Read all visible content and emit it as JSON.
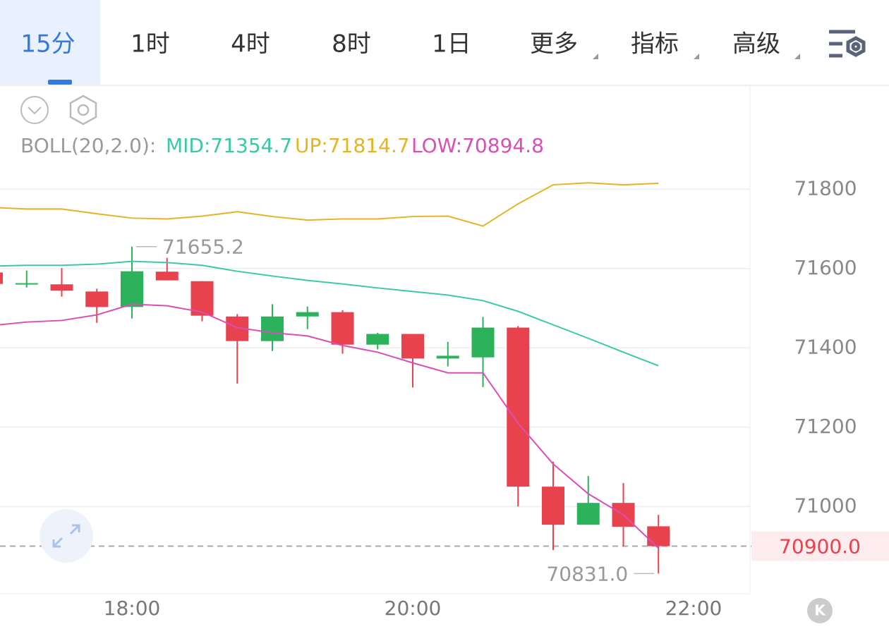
{
  "tabs": [
    "15分",
    "1时",
    "4时",
    "8时",
    "1日",
    "更多",
    "指标",
    "高级"
  ],
  "chart_data": {
    "type": "candlestick",
    "indicator": "BOLL(20,2.0):",
    "categories": [
      null,
      null,
      null,
      null,
      "18:00",
      null,
      null,
      null,
      null,
      null,
      null,
      null,
      "20:00",
      null,
      null,
      null,
      null,
      null,
      null,
      null,
      "22:00"
    ],
    "open": [
      71590,
      71562,
      71560,
      71542,
      71503,
      71592,
      71568,
      71479,
      71417,
      71479,
      71490,
      71408,
      71435,
      71373,
      71376,
      71451,
      71050,
      70954,
      71009,
      70950,
      null
    ],
    "high": [
      71597,
      71595,
      71601,
      71549,
      71655.2,
      71627,
      71568,
      71485,
      71510,
      71504,
      71495,
      71438,
      71435,
      71415,
      71478,
      71455,
      71113,
      71077,
      71059,
      70979,
      null
    ],
    "low": [
      71561,
      71552,
      71529,
      71463,
      71474,
      71570,
      71467,
      71310,
      71392,
      71447,
      71385,
      71396,
      71300,
      71353,
      71301,
      71000,
      70890,
      70954,
      70899,
      70831.0,
      null
    ],
    "close": [
      71561,
      71563,
      71544,
      71503,
      71593,
      71570,
      71481,
      71417,
      71479,
      71490,
      71408,
      71435,
      71373,
      71380,
      71451,
      71050,
      70954,
      71009,
      70949,
      70900,
      null
    ],
    "up_color": "#2db25c",
    "down_color": "#e8424f",
    "series": [
      {
        "name": "MID:71354.7",
        "color": "#3cc8a8",
        "values": [
          71606,
          71608,
          71608,
          71611,
          71618,
          71615,
          71608,
          71593,
          71581,
          71570,
          71561,
          71551,
          71542,
          71533,
          71519,
          71492,
          71458,
          71424,
          71389,
          71354.7,
          null
        ]
      },
      {
        "name": "UP:71814.7",
        "color": "#e6b422",
        "values": [
          71754,
          71750,
          71750,
          71738,
          71727,
          71725,
          71732,
          71743,
          71731,
          71722,
          71725,
          71725,
          71731,
          71732,
          71707,
          71763,
          71811,
          71816,
          71811,
          71814.7,
          null
        ]
      },
      {
        "name": "LOW:70894.8",
        "color": "#d94fb5",
        "values": [
          71456,
          71465,
          71469,
          71483,
          71510,
          71506,
          71490,
          71451,
          71438,
          71430,
          71406,
          71389,
          71362,
          71337,
          71337,
          71210,
          71107,
          71032,
          70979,
          70894.8,
          null
        ]
      }
    ],
    "max_label": "71655.2",
    "min_label": "70831.0",
    "last_price": {
      "value": 70900,
      "label": "70900.0"
    },
    "ylim": [
      70780,
      72060
    ],
    "yticks": [
      71000,
      71200,
      71400,
      71600,
      71800
    ],
    "grid": true
  },
  "corner_button": "K"
}
